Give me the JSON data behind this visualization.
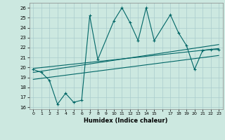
{
  "xlabel": "Humidex (Indice chaleur)",
  "bg_color": "#cce8e0",
  "line_color": "#006666",
  "grid_color": "#aacccc",
  "xlim": [
    -0.5,
    23.5
  ],
  "ylim": [
    15.8,
    26.5
  ],
  "yticks": [
    16,
    17,
    18,
    19,
    20,
    21,
    22,
    23,
    24,
    25,
    26
  ],
  "xticks": [
    0,
    1,
    2,
    3,
    4,
    5,
    6,
    7,
    8,
    9,
    10,
    11,
    12,
    13,
    14,
    15,
    16,
    17,
    18,
    19,
    20,
    21,
    22,
    23
  ],
  "xtick_labels": [
    "0",
    "1",
    "2",
    "3",
    "4",
    "5",
    "6",
    "7",
    "8",
    "9",
    "10",
    "11",
    "12",
    "13",
    "14",
    "15",
    "",
    "17",
    "18",
    "19",
    "20",
    "21",
    "22",
    "23"
  ],
  "series0_x": [
    0,
    1,
    2,
    3,
    4,
    5,
    6,
    7,
    8,
    10,
    11,
    12,
    13,
    14,
    15,
    17,
    18,
    19,
    20,
    21,
    22,
    23
  ],
  "series0_y": [
    19.8,
    19.5,
    18.7,
    16.3,
    17.4,
    16.5,
    16.7,
    25.2,
    20.8,
    24.7,
    26.0,
    24.5,
    22.7,
    26.0,
    22.7,
    25.3,
    23.5,
    22.2,
    19.8,
    21.7,
    21.8,
    21.8
  ],
  "line1_x": [
    0,
    23
  ],
  "line1_y": [
    19.5,
    22.3
  ],
  "line2_x": [
    0,
    23
  ],
  "line2_y": [
    19.9,
    21.9
  ],
  "line3_x": [
    0,
    23
  ],
  "line3_y": [
    18.8,
    21.2
  ]
}
